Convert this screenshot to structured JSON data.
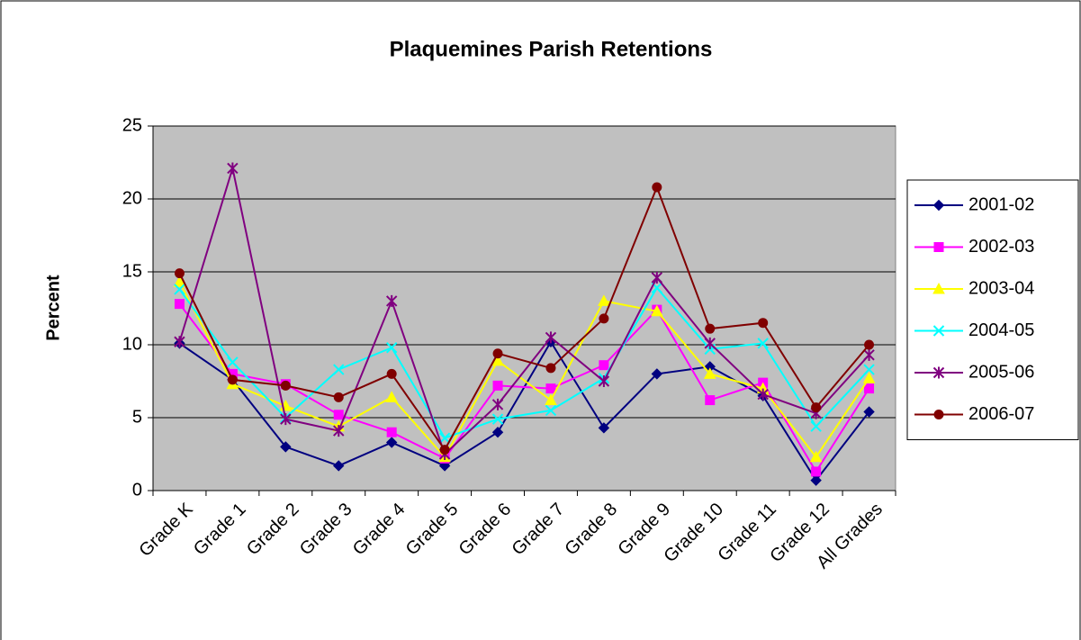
{
  "chart_data": {
    "type": "line",
    "title": "Plaquemines Parish Retentions",
    "y_label": "Percent",
    "categories": [
      "Grade K",
      "Grade 1",
      "Grade 2",
      "Grade 3",
      "Grade 4",
      "Grade 5",
      "Grade 6",
      "Grade 7",
      "Grade 8",
      "Grade 9",
      "Grade 10",
      "Grade 11",
      "Grade 12",
      "All Grades"
    ],
    "series": [
      {
        "name": "2001-02",
        "color": "#000080",
        "marker": "diamond",
        "values": [
          10.1,
          7.6,
          3.0,
          1.7,
          3.3,
          1.7,
          4.0,
          10.2,
          4.3,
          8.0,
          8.5,
          6.5,
          0.7,
          5.4
        ]
      },
      {
        "name": "2002-03",
        "color": "#ff00ff",
        "marker": "square",
        "values": [
          12.8,
          8.0,
          7.3,
          5.2,
          4.0,
          2.2,
          7.2,
          7.0,
          8.6,
          12.4,
          6.2,
          7.4,
          1.3,
          7.0
        ]
      },
      {
        "name": "2003-04",
        "color": "#ffff00",
        "marker": "triangle",
        "values": [
          14.3,
          7.3,
          5.8,
          4.4,
          6.4,
          2.3,
          8.9,
          6.2,
          13.0,
          12.3,
          8.0,
          7.0,
          2.3,
          7.7
        ]
      },
      {
        "name": "2004-05",
        "color": "#00ffff",
        "marker": "x",
        "values": [
          13.8,
          8.8,
          5.0,
          8.3,
          9.8,
          3.6,
          4.9,
          5.5,
          7.7,
          13.9,
          9.7,
          10.1,
          4.4,
          8.3
        ]
      },
      {
        "name": "2005-06",
        "color": "#800080",
        "marker": "star",
        "values": [
          10.2,
          22.1,
          4.9,
          4.1,
          13.0,
          2.5,
          5.9,
          10.5,
          7.5,
          14.6,
          10.1,
          6.6,
          5.3,
          9.3
        ]
      },
      {
        "name": "2006-07",
        "color": "#800000",
        "marker": "circle",
        "values": [
          14.9,
          7.6,
          7.2,
          6.4,
          8.0,
          2.8,
          9.4,
          8.4,
          11.8,
          20.8,
          11.1,
          11.5,
          5.7,
          10.0
        ]
      }
    ],
    "ylim": [
      0,
      25
    ],
    "yticks": [
      0,
      5,
      10,
      15,
      20,
      25
    ],
    "grid": true,
    "plot_background": "#c0c0c0",
    "legend": "right"
  }
}
